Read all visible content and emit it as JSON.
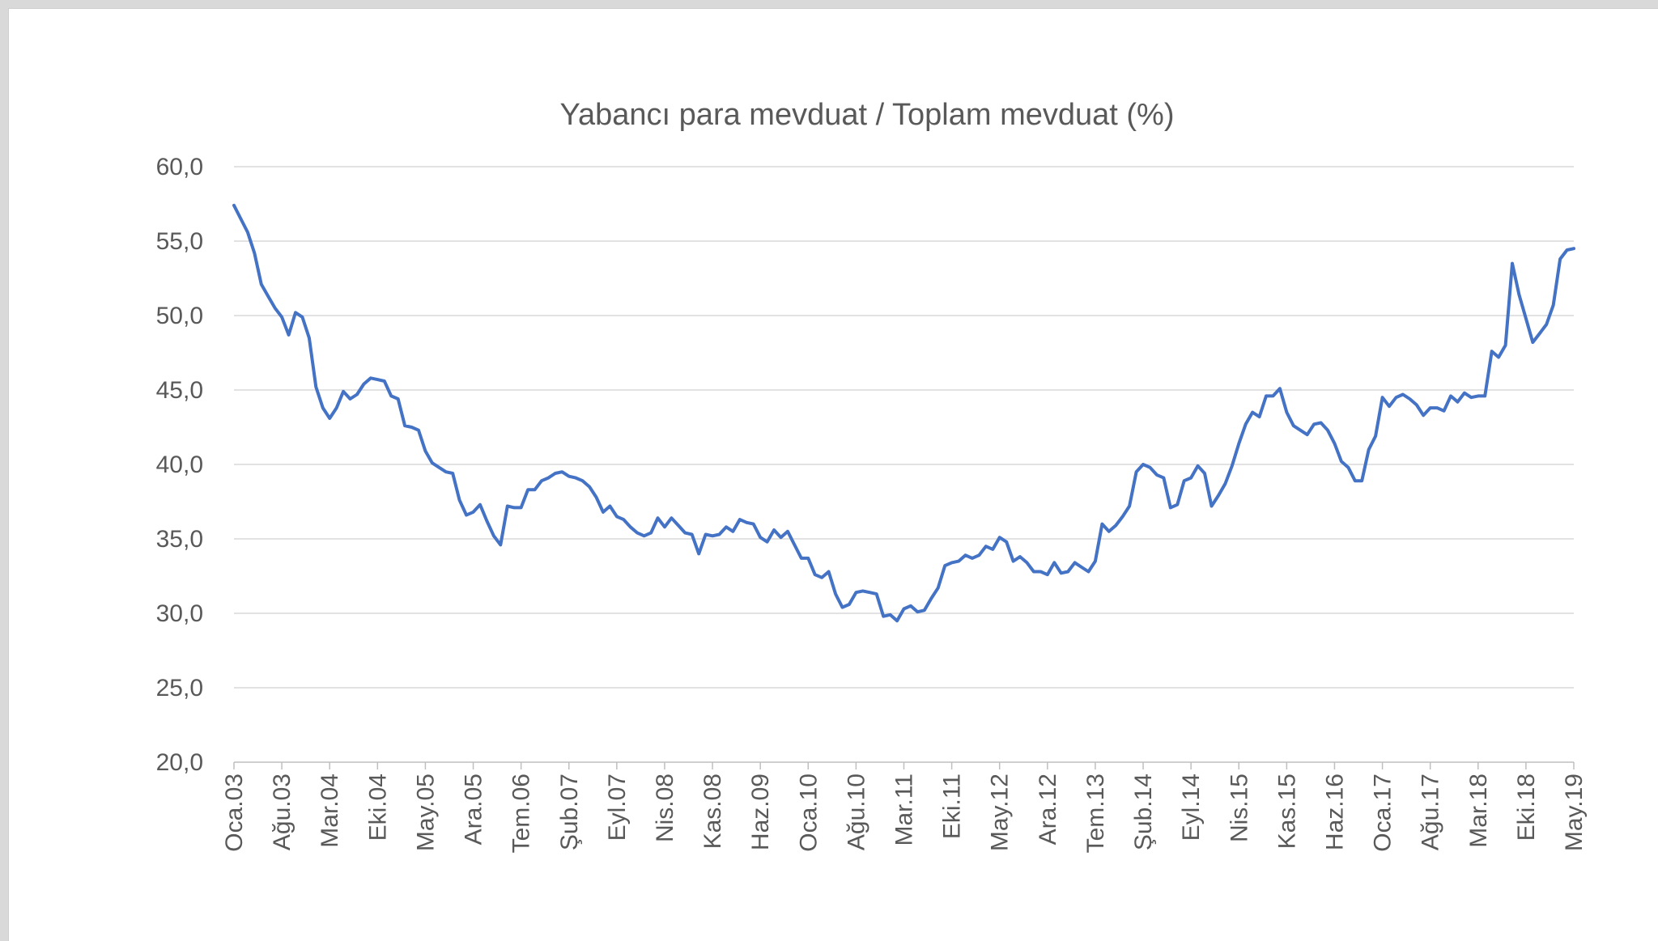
{
  "chart_data": {
    "type": "line",
    "title": "Yabancı para mevduat / Toplam mevduat (%)",
    "xlabel": "",
    "ylabel": "",
    "ylim": [
      20,
      60
    ],
    "yticks": [
      "20,0",
      "25,0",
      "30,0",
      "35,0",
      "40,0",
      "45,0",
      "50,0",
      "55,0",
      "60,0"
    ],
    "grid": true,
    "legend": "none",
    "color": "#4472c4",
    "x_tick_labels": [
      "Oca.03",
      "Ağu.03",
      "Mar.04",
      "Eki.04",
      "May.05",
      "Ara.05",
      "Tem.06",
      "Şub.07",
      "Eyl.07",
      "Nis.08",
      "Kas.08",
      "Haz.09",
      "Oca.10",
      "Ağu.10",
      "Mar.11",
      "Eki.11",
      "May.12",
      "Ara.12",
      "Tem.13",
      "Şub.14",
      "Eyl.14",
      "Nis.15",
      "Kas.15",
      "Haz.16",
      "Oca.17",
      "Ağu.17",
      "Mar.18",
      "Eki.18",
      "May.19"
    ],
    "x_start": "Oca.03",
    "x_end": "May.19",
    "frequency": "monthly",
    "series": [
      {
        "values": [
          57.4,
          56.5,
          55.6,
          54.2,
          52.1,
          51.3,
          50.5,
          49.9,
          48.7,
          50.2,
          49.9,
          48.5,
          45.2,
          43.8,
          43.1,
          43.8,
          44.9,
          44.4,
          44.7,
          45.4,
          45.8,
          45.7,
          45.6,
          44.6,
          44.4,
          42.6,
          42.5,
          42.3,
          40.9,
          40.1,
          39.8,
          39.5,
          39.4,
          37.6,
          36.6,
          36.8,
          37.3,
          36.2,
          35.2,
          34.6,
          37.2,
          37.1,
          37.1,
          38.3,
          38.3,
          38.9,
          39.1,
          39.4,
          39.5,
          39.2,
          39.1,
          38.9,
          38.5,
          37.8,
          36.8,
          37.2,
          36.5,
          36.3,
          35.8,
          35.4,
          35.2,
          35.4,
          36.4,
          35.8,
          36.4,
          35.9,
          35.4,
          35.3,
          34.0,
          35.3,
          35.2,
          35.3,
          35.8,
          35.5,
          36.3,
          36.1,
          36.0,
          35.1,
          34.8,
          35.6,
          35.1,
          35.5,
          34.6,
          33.7,
          33.7,
          32.6,
          32.4,
          32.8,
          31.3,
          30.4,
          30.6,
          31.4,
          31.5,
          31.4,
          31.3,
          29.8,
          29.9,
          29.5,
          30.3,
          30.5,
          30.1,
          30.2,
          31.0,
          31.7,
          33.2,
          33.4,
          33.5,
          33.9,
          33.7,
          33.9,
          34.5,
          34.3,
          35.1,
          34.8,
          33.5,
          33.8,
          33.4,
          32.8,
          32.8,
          32.6,
          33.4,
          32.7,
          32.8,
          33.4,
          33.1,
          32.8,
          33.5,
          36.0,
          35.5,
          35.9,
          36.5,
          37.2,
          39.5,
          40.0,
          39.8,
          39.3,
          39.1,
          37.1,
          37.3,
          38.9,
          39.1,
          39.9,
          39.4,
          37.2,
          37.9,
          38.7,
          39.9,
          41.4,
          42.7,
          43.5,
          43.2,
          44.6,
          44.6,
          45.1,
          43.5,
          42.6,
          42.3,
          42.0,
          42.7,
          42.8,
          42.3,
          41.4,
          40.2,
          39.8,
          38.9,
          38.9,
          41.0,
          41.9,
          44.5,
          43.9,
          44.5,
          44.7,
          44.4,
          44.0,
          43.3,
          43.8,
          43.8,
          43.6,
          44.6,
          44.2,
          44.8,
          44.5,
          44.6,
          44.6,
          47.6,
          47.2,
          48.0,
          53.5,
          51.4,
          49.8,
          48.2,
          48.8,
          49.4,
          50.7,
          53.8,
          54.4,
          54.5
        ]
      }
    ]
  }
}
